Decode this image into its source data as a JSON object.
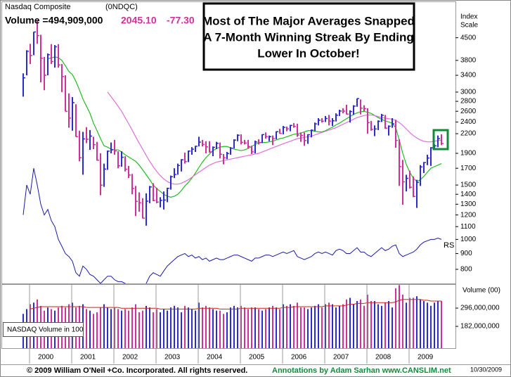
{
  "header": {
    "index_name": "Nasdaq Composite",
    "symbol": "(0NDQC)",
    "volume": "Volume =494,909,000",
    "last": "2045.10",
    "change": "-77.30",
    "annotation": [
      "Most of The Major Averages Snapped",
      "A 7-Month Winning Streak By Ending",
      "Lower In October!"
    ],
    "scale_label": [
      "Index",
      "Scale"
    ]
  },
  "chart_data": [
    {
      "type": "ohlc",
      "log_scale": true,
      "up_color": "#2b2bd0",
      "down_color": "#d0309a",
      "categories": [
        null,
        null,
        "2000",
        null,
        null,
        null,
        null,
        null,
        null,
        null,
        null,
        null,
        null,
        null,
        "2001",
        null,
        null,
        null,
        null,
        null,
        null,
        null,
        null,
        null,
        null,
        null,
        "2002",
        null,
        null,
        null,
        null,
        null,
        null,
        null,
        null,
        null,
        null,
        null,
        "2003",
        null,
        null,
        null,
        null,
        null,
        null,
        null,
        null,
        null,
        null,
        null,
        "2004",
        null,
        null,
        null,
        null,
        null,
        null,
        null,
        null,
        null,
        null,
        null,
        "2005",
        null,
        null,
        null,
        null,
        null,
        null,
        null,
        null,
        null,
        null,
        null,
        "2006",
        null,
        null,
        null,
        null,
        null,
        null,
        null,
        null,
        null,
        null,
        null,
        "2007",
        null,
        null,
        null,
        null,
        null,
        null,
        null,
        null,
        null,
        null,
        null,
        "2008",
        null,
        null,
        null,
        null,
        null,
        null,
        null,
        null,
        null,
        null,
        null,
        "2009",
        null,
        null,
        null,
        null,
        null,
        null,
        null,
        null,
        null
      ],
      "high": [
        3450,
        4100,
        4300,
        4700,
        5132,
        4600,
        3900,
        4000,
        4290,
        4260,
        4290,
        3700,
        3400,
        2970,
        2890,
        2740,
        2250,
        2230,
        2310,
        2260,
        2150,
        2070,
        1900,
        1760,
        1940,
        2060,
        2100,
        1930,
        1930,
        1860,
        1730,
        1630,
        1490,
        1420,
        1360,
        1410,
        1490,
        1520,
        1470,
        1370,
        1430,
        1470,
        1610,
        1700,
        1760,
        1820,
        1910,
        1940,
        1990,
        2010,
        2150,
        2100,
        2080,
        2080,
        2000,
        2070,
        2060,
        1890,
        1920,
        1990,
        2110,
        2190,
        2190,
        2100,
        2100,
        2010,
        2090,
        2110,
        2190,
        2220,
        2170,
        2170,
        2240,
        2280,
        2330,
        2320,
        2350,
        2380,
        2370,
        2220,
        2220,
        2190,
        2270,
        2390,
        2470,
        2470,
        2510,
        2530,
        2470,
        2560,
        2630,
        2660,
        2730,
        2620,
        2720,
        2861,
        2840,
        2720,
        2660,
        2420,
        2340,
        2430,
        2550,
        2530,
        2340,
        2470,
        2440,
        2110,
        1810,
        1620,
        1670,
        1600,
        1560,
        1740,
        1780,
        1880,
        1990,
        2030,
        2170,
        2190
      ],
      "low": [
        2900,
        3400,
        3700,
        3950,
        4300,
        3227,
        3042,
        3400,
        3700,
        3600,
        3600,
        3000,
        2600,
        2300,
        2250,
        2150,
        1790,
        1620,
        2050,
        1950,
        1960,
        1800,
        1390,
        1480,
        1680,
        1900,
        1880,
        1700,
        1720,
        1660,
        1580,
        1400,
        1190,
        1230,
        1170,
        1108,
        1310,
        1330,
        1310,
        1270,
        1250,
        1320,
        1450,
        1580,
        1620,
        1660,
        1760,
        1780,
        1880,
        1920,
        2000,
        2000,
        1900,
        1910,
        1860,
        1960,
        1830,
        1750,
        1820,
        1880,
        1970,
        2080,
        2030,
        2030,
        1970,
        1890,
        1900,
        2030,
        2050,
        2120,
        2080,
        2020,
        2110,
        2200,
        2190,
        2240,
        2240,
        2300,
        2150,
        2070,
        2010,
        2040,
        2140,
        2240,
        2340,
        2390,
        2400,
        2340,
        2330,
        2410,
        2510,
        2560,
        2540,
        2390,
        2530,
        2690,
        2540,
        2600,
        2200,
        2250,
        2160,
        2260,
        2400,
        2280,
        2170,
        2300,
        1980,
        1490,
        1295,
        1430,
        1460,
        1370,
        1265,
        1490,
        1640,
        1740,
        1730,
        1950,
        1990,
        2020
      ],
      "close": [
        3336,
        4069,
        3940,
        4697,
        4573,
        3861,
        3401,
        3966,
        3767,
        4206,
        3673,
        3370,
        2598,
        2471,
        2773,
        2152,
        1840,
        2116,
        2110,
        2161,
        2027,
        1805,
        1499,
        1690,
        1931,
        1950,
        1934,
        1731,
        1845,
        1688,
        1616,
        1463,
        1328,
        1315,
        1172,
        1330,
        1479,
        1336,
        1321,
        1338,
        1341,
        1464,
        1596,
        1623,
        1735,
        1810,
        1787,
        1932,
        1960,
        2003,
        2066,
        2030,
        1994,
        1920,
        1987,
        2048,
        1887,
        1838,
        1897,
        1975,
        2097,
        2175,
        2062,
        2052,
        1999,
        1922,
        2068,
        2057,
        2185,
        2152,
        2152,
        2120,
        2233,
        2205,
        2306,
        2281,
        2340,
        2323,
        2179,
        2172,
        2091,
        2184,
        2258,
        2367,
        2432,
        2415,
        2464,
        2416,
        2422,
        2525,
        2605,
        2603,
        2546,
        2596,
        2702,
        2859,
        2661,
        2652,
        2390,
        2271,
        2279,
        2413,
        2523,
        2293,
        2326,
        2368,
        2092,
        1721,
        1536,
        1577,
        1476,
        1378,
        1529,
        1717,
        1774,
        1835,
        1979,
        2009,
        2122,
        2045
      ],
      "ma_lines": [
        {
          "color": "#22bb22",
          "values": [
            null,
            null,
            null,
            null,
            null,
            null,
            null,
            3850,
            3870,
            3900,
            3880,
            3800,
            3650,
            3500,
            3420,
            3250,
            3050,
            2850,
            2700,
            2560,
            2380,
            2250,
            2120,
            2010,
            1990,
            1960,
            1950,
            1950,
            1920,
            1880,
            1850,
            1820,
            1790,
            1740,
            1680,
            1620,
            1560,
            1500,
            1460,
            1430,
            1400,
            1380,
            1370,
            1380,
            1400,
            1440,
            1490,
            1530,
            1580,
            1640,
            1710,
            1780,
            1840,
            1890,
            1940,
            1970,
            1990,
            2000,
            2000,
            1980,
            1960,
            1950,
            1940,
            1950,
            1970,
            2000,
            2030,
            2060,
            2060,
            2060,
            2070,
            2080,
            2100,
            2120,
            2130,
            2150,
            2170,
            2190,
            2200,
            2210,
            2230,
            2250,
            2250,
            2240,
            2230,
            2230,
            2250,
            2280,
            2310,
            2350,
            2380,
            2420,
            2460,
            2500,
            2540,
            2570,
            2590,
            2600,
            2580,
            2560,
            2520,
            2480,
            2450,
            2420,
            2400,
            2380,
            2300,
            2100,
            1900,
            1750,
            1650,
            1580,
            1540,
            1560,
            1600,
            1650,
            1700,
            1720,
            1740,
            1760
          ]
        },
        {
          "color": "#e070d8",
          "values": [
            null,
            null,
            null,
            null,
            null,
            null,
            null,
            null,
            null,
            null,
            null,
            null,
            null,
            null,
            null,
            null,
            null,
            null,
            null,
            null,
            null,
            null,
            null,
            null,
            3000,
            2900,
            2800,
            2700,
            2600,
            2480,
            2370,
            2260,
            2150,
            2050,
            1960,
            1870,
            1790,
            1720,
            1660,
            1610,
            1570,
            1540,
            1520,
            1510,
            1510,
            1520,
            1540,
            1560,
            1590,
            1620,
            1650,
            1680,
            1710,
            1740,
            1760,
            1780,
            1790,
            1800,
            1810,
            1820,
            1830,
            1840,
            1850,
            1860,
            1870,
            1880,
            1890,
            1900,
            1920,
            1940,
            1960,
            1980,
            2000,
            2020,
            2040,
            2060,
            2080,
            2100,
            2120,
            2130,
            2140,
            2150,
            2160,
            2180,
            2200,
            2220,
            2240,
            2260,
            2280,
            2300,
            2330,
            2360,
            2390,
            2420,
            2450,
            2480,
            2500,
            2520,
            2530,
            2530,
            2520,
            2500,
            2480,
            2470,
            2460,
            2450,
            2430,
            2390,
            2340,
            2280,
            2220,
            2170,
            2130,
            2100,
            2080,
            2070,
            2070,
            2080,
            2090,
            2100
          ]
        }
      ],
      "rs": {
        "label": "RS",
        "color": "#1a1aaa",
        "values": [
          1200,
          1500,
          1400,
          1700,
          1500,
          1300,
          1200,
          1250,
          1150,
          1100,
          1000,
          950,
          900,
          880,
          850,
          780,
          760,
          820,
          800,
          770,
          760,
          740,
          720,
          740,
          760,
          760,
          740,
          730,
          730,
          720,
          710,
          700,
          690,
          700,
          690,
          720,
          760,
          780,
          770,
          760,
          790,
          820,
          840,
          860,
          880,
          890,
          900,
          880,
          890,
          870,
          880,
          860,
          870,
          850,
          860,
          870,
          860,
          860,
          870,
          880,
          890,
          890,
          880,
          870,
          860,
          850,
          870,
          870,
          880,
          890,
          890,
          880,
          890,
          900,
          910,
          900,
          910,
          920,
          880,
          870,
          860,
          870,
          880,
          900,
          910,
          900,
          910,
          900,
          890,
          920,
          930,
          920,
          900,
          900,
          920,
          940,
          910,
          910,
          890,
          880,
          900,
          920,
          940,
          920,
          930,
          950,
          960,
          900,
          880,
          890,
          900,
          910,
          930,
          960,
          980,
          990,
          1000,
          1000,
          1010,
          1000
        ]
      },
      "ylim": [
        720,
        5900
      ],
      "yticks": [
        4500,
        3800,
        3400,
        3000,
        2800,
        2600,
        2400,
        2200,
        1900,
        1700,
        1500,
        1400,
        1300,
        1200,
        1100,
        1000,
        900,
        800
      ]
    },
    {
      "type": "volume_bar",
      "axis_label": "Volume (00)",
      "legend_box": "NASDAQ Volume in 100",
      "ma_color": "#d02020",
      "values": [
        260000000,
        290000000,
        320000000,
        330000000,
        350000000,
        310000000,
        280000000,
        300000000,
        290000000,
        280000000,
        300000000,
        310000000,
        300000000,
        320000000,
        330000000,
        300000000,
        310000000,
        320000000,
        290000000,
        280000000,
        260000000,
        270000000,
        300000000,
        320000000,
        300000000,
        290000000,
        300000000,
        290000000,
        280000000,
        290000000,
        280000000,
        300000000,
        320000000,
        270000000,
        280000000,
        310000000,
        300000000,
        270000000,
        290000000,
        270000000,
        290000000,
        280000000,
        300000000,
        310000000,
        300000000,
        270000000,
        310000000,
        300000000,
        290000000,
        280000000,
        330000000,
        300000000,
        310000000,
        300000000,
        290000000,
        280000000,
        280000000,
        260000000,
        270000000,
        300000000,
        310000000,
        300000000,
        310000000,
        300000000,
        290000000,
        300000000,
        300000000,
        290000000,
        280000000,
        290000000,
        300000000,
        310000000,
        300000000,
        290000000,
        320000000,
        310000000,
        320000000,
        310000000,
        330000000,
        300000000,
        300000000,
        290000000,
        300000000,
        310000000,
        320000000,
        300000000,
        320000000,
        330000000,
        320000000,
        300000000,
        310000000,
        320000000,
        350000000,
        360000000,
        320000000,
        340000000,
        350000000,
        310000000,
        380000000,
        340000000,
        340000000,
        320000000,
        310000000,
        330000000,
        340000000,
        300000000,
        420000000,
        440000000,
        380000000,
        330000000,
        360000000,
        360000000,
        370000000,
        350000000,
        340000000,
        330000000,
        310000000,
        330000000,
        340000000,
        340000000
      ],
      "ma_values": [
        null,
        null,
        290000000,
        295000000,
        300000000,
        305000000,
        305000000,
        305000000,
        305000000,
        305000000,
        305000000,
        305000000,
        305000000,
        305000000,
        305000000,
        305000000,
        305000000,
        305000000,
        300000000,
        300000000,
        300000000,
        300000000,
        300000000,
        300000000,
        300000000,
        300000000,
        300000000,
        300000000,
        295000000,
        295000000,
        295000000,
        295000000,
        295000000,
        295000000,
        295000000,
        295000000,
        295000000,
        295000000,
        295000000,
        290000000,
        290000000,
        290000000,
        290000000,
        290000000,
        290000000,
        290000000,
        290000000,
        290000000,
        290000000,
        290000000,
        295000000,
        295000000,
        295000000,
        295000000,
        295000000,
        295000000,
        290000000,
        290000000,
        290000000,
        290000000,
        290000000,
        290000000,
        295000000,
        295000000,
        295000000,
        295000000,
        295000000,
        295000000,
        295000000,
        295000000,
        295000000,
        295000000,
        295000000,
        295000000,
        300000000,
        300000000,
        300000000,
        305000000,
        305000000,
        305000000,
        305000000,
        305000000,
        305000000,
        305000000,
        305000000,
        305000000,
        310000000,
        310000000,
        310000000,
        310000000,
        310000000,
        310000000,
        315000000,
        320000000,
        320000000,
        325000000,
        325000000,
        325000000,
        330000000,
        330000000,
        330000000,
        330000000,
        330000000,
        330000000,
        330000000,
        330000000,
        335000000,
        345000000,
        350000000,
        350000000,
        350000000,
        350000000,
        350000000,
        350000000,
        345000000,
        345000000,
        340000000,
        340000000,
        340000000,
        340000000
      ],
      "ylim": [
        46000000,
        441000000
      ],
      "yticks": [
        {
          "value": 296000000,
          "label": "296,000,000"
        },
        {
          "value": 182000000,
          "label": "182,000,000"
        }
      ]
    }
  ],
  "footer": {
    "copyright": "© 2009 William O'Neil +Co. Incorporated. All rights reserved.",
    "annotations": "Annotations by Adam Sarhan www.CANSLIM.net",
    "date": "10/30/2009"
  }
}
